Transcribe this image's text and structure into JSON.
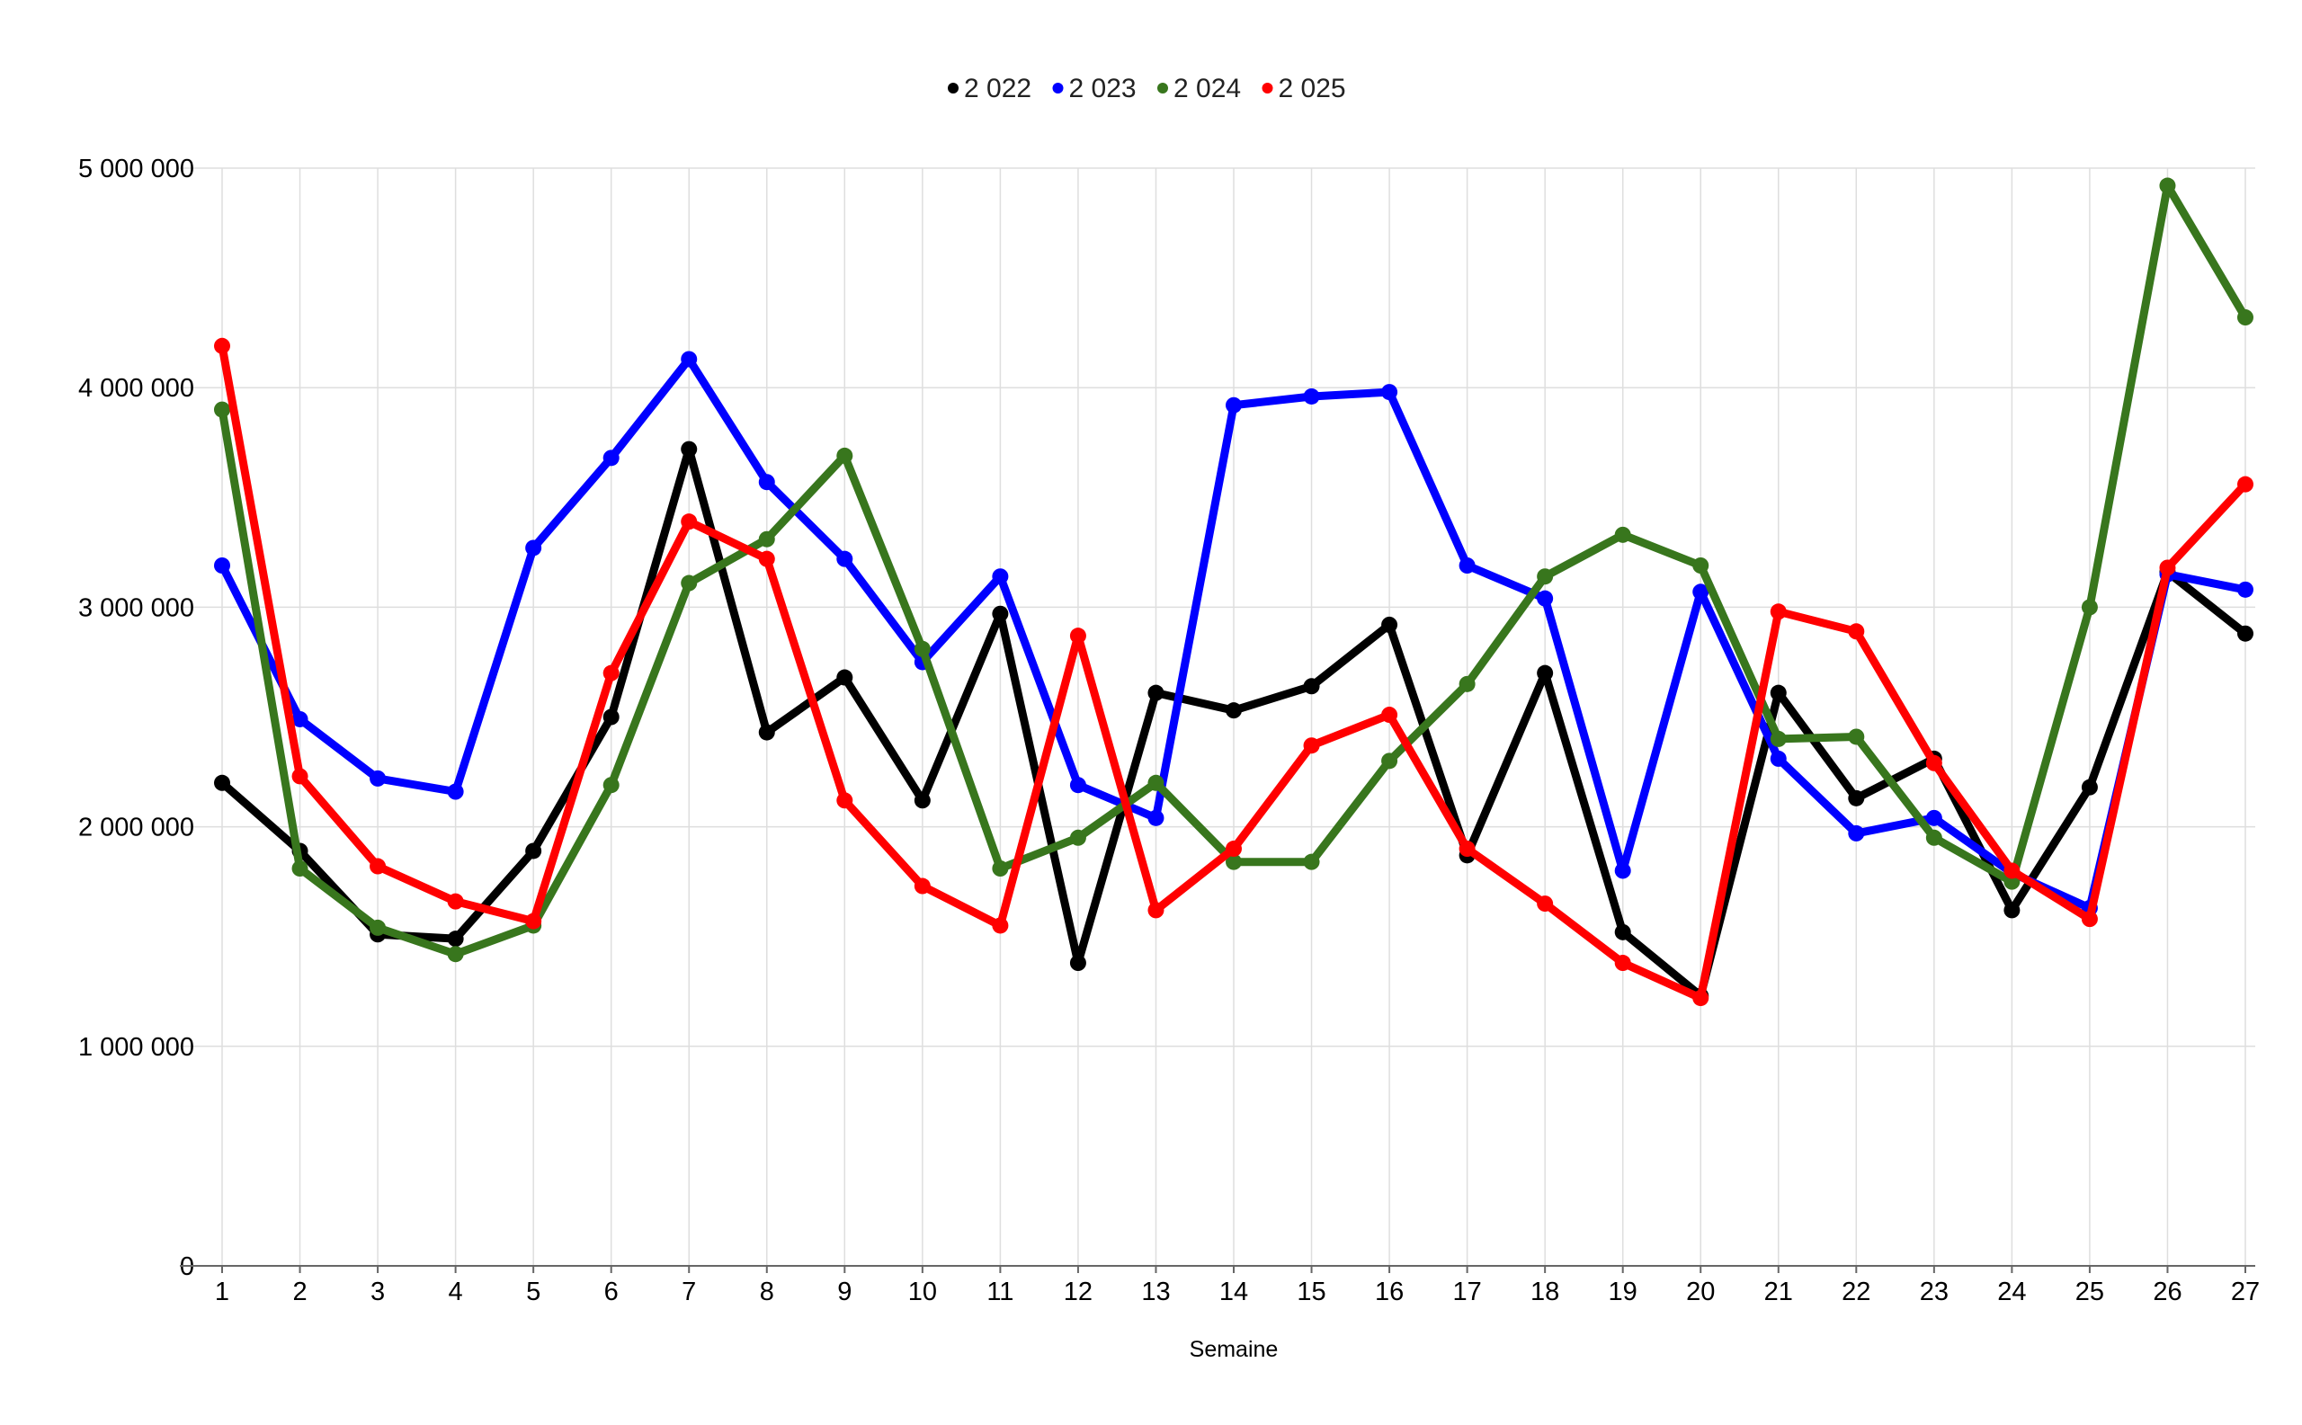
{
  "chart_data": {
    "type": "line",
    "title": "",
    "xlabel": "Semaine",
    "ylabel": "",
    "ylim": [
      0,
      5000000
    ],
    "yticks": [
      0,
      1000000,
      2000000,
      3000000,
      4000000,
      5000000
    ],
    "ytick_labels": [
      "0",
      "1 000 000",
      "2 000 000",
      "3 000 000",
      "4 000 000",
      "5 000 000"
    ],
    "categories": [
      "1",
      "2",
      "3",
      "4",
      "5",
      "6",
      "7",
      "8",
      "9",
      "10",
      "11",
      "12",
      "13",
      "14",
      "15",
      "16",
      "17",
      "18",
      "19",
      "20",
      "21",
      "22",
      "23",
      "24",
      "25",
      "26",
      "27"
    ],
    "grid": true,
    "legend_position": "top-center",
    "series": [
      {
        "name": "2 022",
        "color": "#000000",
        "values": [
          2200000,
          1890000,
          1510000,
          1490000,
          1890000,
          2500000,
          3720000,
          2430000,
          2680000,
          2120000,
          2970000,
          1380000,
          2610000,
          2530000,
          2640000,
          2920000,
          1870000,
          2700000,
          1520000,
          1230000,
          2610000,
          2130000,
          2310000,
          1620000,
          2180000,
          3160000,
          2880000
        ]
      },
      {
        "name": "2 023",
        "color": "#0000ff",
        "values": [
          3190000,
          2490000,
          2220000,
          2160000,
          3270000,
          3680000,
          4130000,
          3570000,
          3220000,
          2750000,
          3140000,
          2190000,
          2040000,
          3920000,
          3960000,
          3980000,
          3190000,
          3040000,
          1800000,
          3070000,
          2310000,
          1970000,
          2040000,
          1790000,
          1630000,
          3150000,
          3080000
        ]
      },
      {
        "name": "2 024",
        "color": "#38761d",
        "values": [
          3900000,
          1810000,
          1540000,
          1420000,
          1550000,
          2190000,
          3110000,
          3310000,
          3690000,
          2810000,
          1810000,
          1950000,
          2200000,
          1840000,
          1840000,
          2300000,
          2650000,
          3140000,
          3330000,
          3190000,
          2400000,
          2410000,
          1950000,
          1750000,
          3000000,
          4920000,
          4320000
        ]
      },
      {
        "name": "2 025",
        "color": "#ff0000",
        "values": [
          4190000,
          2230000,
          1820000,
          1660000,
          1570000,
          2700000,
          3390000,
          3220000,
          2120000,
          1730000,
          1550000,
          2870000,
          1620000,
          1900000,
          2370000,
          2510000,
          1900000,
          1650000,
          1380000,
          1220000,
          2980000,
          2890000,
          2290000,
          1800000,
          1580000,
          3180000,
          3560000
        ]
      }
    ]
  }
}
